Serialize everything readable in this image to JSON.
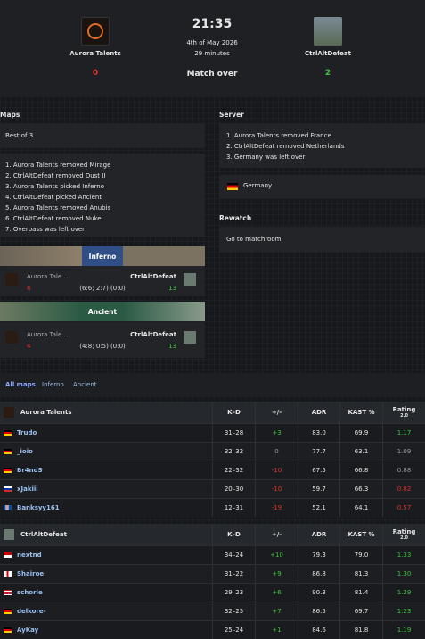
{
  "header": {
    "team1": {
      "name": "Aurora Talents",
      "score": 0
    },
    "time": "21:35",
    "date": "4th of May 2026",
    "duration": "29 minutes",
    "status": "Match over",
    "team2": {
      "name": "CtrlAltDefeat",
      "score": 2
    }
  },
  "maps": {
    "title": "Maps",
    "format": "Best of 3",
    "veto": [
      "1. Aurora Talents removed Mirage",
      "2. CtrlAltDefeat removed Dust II",
      "3. Aurora Talents picked Inferno",
      "4. CtrlAltDefeat picked Ancient",
      "5. Aurora Talents removed Anubis",
      "6. CtrlAltDefeat removed Nuke",
      "7. Overpass was left over"
    ],
    "results": [
      {
        "map": "Inferno",
        "team1": "Aurora Talents",
        "score1": 8,
        "team2": "CtrlAltDefeat",
        "score2": 13,
        "halves": "(6:6; 2:7) (0:0)"
      },
      {
        "map": "Ancient",
        "team1": "Aurora Talents",
        "score1": 4,
        "team2": "CtrlAltDefeat",
        "score2": 13,
        "halves": "(4:8; 0:5) (0:0)"
      }
    ]
  },
  "server": {
    "title": "Server",
    "veto": [
      "1. Aurora Talents removed France",
      "2. CtrlAltDefeat removed Netherlands",
      "3. Germany was left over"
    ],
    "location": "Germany",
    "rewatch_title": "Rewatch",
    "rewatch_link": "Go to matchroom"
  },
  "tabs": [
    "All maps",
    "Inferno",
    "Ancient"
  ],
  "columns": [
    "K–D",
    "+/-",
    "ADR",
    "KAST %",
    "Rating",
    "2.0"
  ],
  "tables": [
    {
      "team": "Aurora Talents",
      "rows": [
        [
          "Trudo",
          "31–28",
          "+3",
          "83.0",
          "69.9",
          "1.17"
        ],
        [
          "_ioio",
          "32–32",
          "0",
          "77.7",
          "63.1",
          "1.09"
        ],
        [
          "Br4ndS",
          "22–32",
          "-10",
          "67.5",
          "66.8",
          "0.88"
        ],
        [
          "xJakiii",
          "20–30",
          "-10",
          "59.7",
          "66.3",
          "0.82"
        ],
        [
          "Banksyy161",
          "12–31",
          "-19",
          "52.1",
          "64.1",
          "0.57"
        ]
      ]
    },
    {
      "team": "CtrlAltDefeat",
      "rows": [
        [
          "nextnd",
          "34–24",
          "+10",
          "79.3",
          "79.0",
          "1.33"
        ],
        [
          "Shairoe",
          "31–22",
          "+9",
          "86.8",
          "81.3",
          "1.30"
        ],
        [
          "schorle",
          "29–23",
          "+6",
          "90.3",
          "81.4",
          "1.29"
        ],
        [
          "delkore-",
          "32–25",
          "+7",
          "86.5",
          "69.7",
          "1.23"
        ],
        [
          "AyKay",
          "25–24",
          "+1",
          "84.6",
          "81.8",
          "1.19"
        ]
      ]
    }
  ]
}
